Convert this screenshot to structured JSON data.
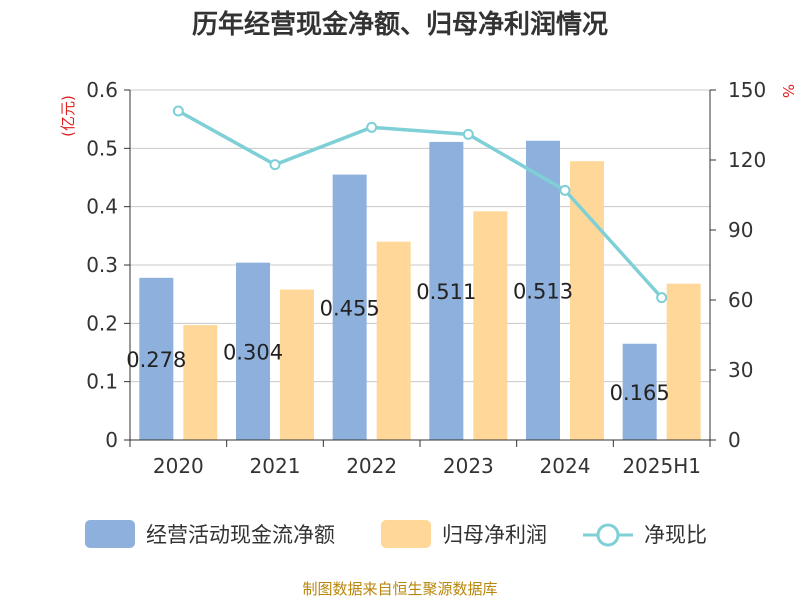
{
  "title": "历年经营现金净额、归母净利润情况",
  "source": "制图数据来自恒生聚源数据库",
  "colors": {
    "cash_flow": "#8eb0dc",
    "net_profit": "#ffd899",
    "ratio": "#7fd0d6",
    "axis": "#333333",
    "grid": "#c8c8c8",
    "unit": "#e02020"
  },
  "chart_data": {
    "type": "bar",
    "categories": [
      "2020",
      "2021",
      "2022",
      "2023",
      "2024",
      "2025H1"
    ],
    "series": [
      {
        "name": "经营活动现金流净额",
        "type": "bar",
        "axis": "left",
        "values": [
          0.278,
          0.304,
          0.455,
          0.511,
          0.513,
          0.165
        ],
        "labels": [
          "0.278",
          "0.304",
          "0.455",
          "0.511",
          "0.513",
          "0.165"
        ]
      },
      {
        "name": "归母净利润",
        "type": "bar",
        "axis": "left",
        "values": [
          0.197,
          0.258,
          0.34,
          0.392,
          0.478,
          0.268
        ]
      },
      {
        "name": "净现比",
        "type": "line",
        "axis": "right",
        "values": [
          141,
          118,
          134,
          131,
          107,
          61
        ]
      }
    ],
    "left_axis": {
      "unit": "(亿元)",
      "ylim": [
        0,
        0.6
      ],
      "ticks": [
        "0",
        "0.1",
        "0.2",
        "0.3",
        "0.4",
        "0.5",
        "0.6"
      ]
    },
    "right_axis": {
      "unit": "%",
      "ylim": [
        0,
        150
      ],
      "ticks": [
        "0",
        "30",
        "60",
        "90",
        "120",
        "150"
      ]
    },
    "grid": true,
    "legend_position": "bottom"
  }
}
